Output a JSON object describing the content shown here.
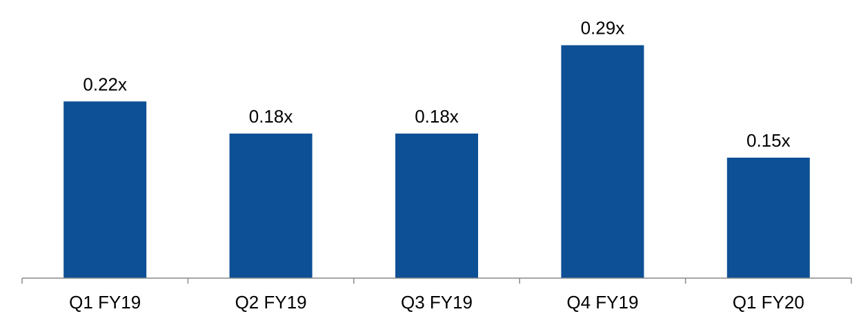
{
  "chart_data": {
    "type": "bar",
    "categories": [
      "Q1 FY19",
      "Q2 FY19",
      "Q3 FY19",
      "Q4 FY19",
      "Q1 FY20"
    ],
    "values": [
      0.22,
      0.18,
      0.18,
      0.29,
      0.15
    ],
    "data_labels": [
      "0.22x",
      "0.18x",
      "0.18x",
      "0.29x",
      "0.15x"
    ],
    "title": "",
    "xlabel": "",
    "ylabel": "",
    "ylim": [
      0,
      0.3
    ],
    "grid": false,
    "legend": "none",
    "bar_color": "#0E5095"
  }
}
